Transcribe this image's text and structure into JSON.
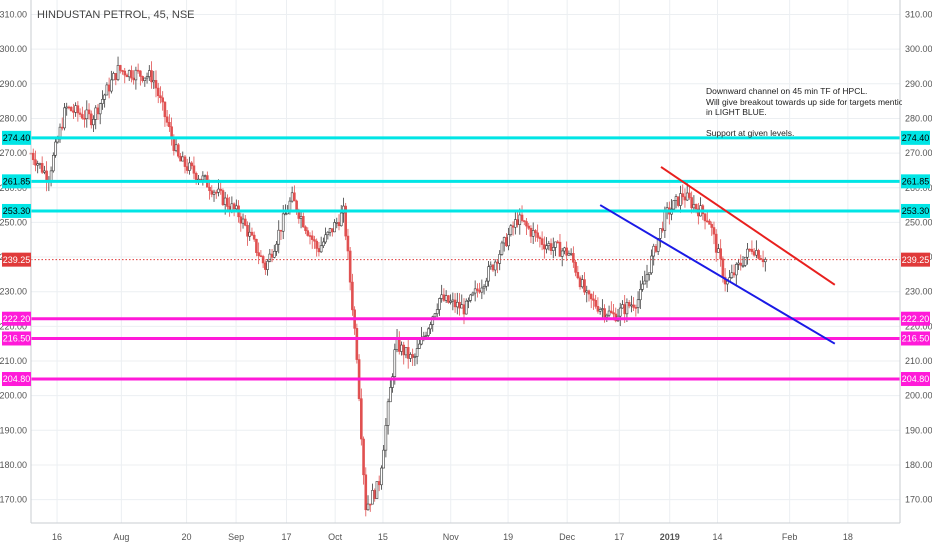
{
  "title": "HINDUSTAN PETROL, 45, NSE",
  "annotation": [
    "Downward channel on 45 min TF of HPCL.",
    "Will give breakout towards up side for targets mentioned",
    "in LIGHT BLUE.",
    "",
    "Support at given levels."
  ],
  "colors": {
    "resistance": "#00e5e5",
    "support": "#ff1ad9",
    "last_price": "#e03a3a",
    "channel_upper": "#e8201e",
    "channel_lower": "#1a1ae6",
    "candle_up": "#3a3a3a",
    "candle_down": "#e05050"
  },
  "chart_data": {
    "type": "candlestick",
    "symbol": "HINDUSTAN PETROL",
    "timeframe": "45",
    "exchange": "NSE",
    "ylim": [
      163,
      313
    ],
    "y_ticks": [
      "310.00",
      "300.00",
      "290.00",
      "280.00",
      "270.00",
      "260.00",
      "250.00",
      "240.00",
      "230.00",
      "220.00",
      "210.00",
      "200.00",
      "190.00",
      "180.00",
      "170.00"
    ],
    "x_ticks": [
      "16",
      "Aug",
      "20",
      "Sep",
      "17",
      "Oct",
      "15",
      "Nov",
      "19",
      "Dec",
      "17",
      "2019",
      "14",
      "Feb",
      "18"
    ],
    "price_path": [
      {
        "t": 0.0,
        "p": 270
      },
      {
        "t": 0.02,
        "p": 263
      },
      {
        "t": 0.04,
        "p": 283
      },
      {
        "t": 0.07,
        "p": 280
      },
      {
        "t": 0.1,
        "p": 294
      },
      {
        "t": 0.14,
        "p": 292
      },
      {
        "t": 0.17,
        "p": 268
      },
      {
        "t": 0.2,
        "p": 262
      },
      {
        "t": 0.24,
        "p": 252
      },
      {
        "t": 0.27,
        "p": 237
      },
      {
        "t": 0.3,
        "p": 257
      },
      {
        "t": 0.33,
        "p": 242
      },
      {
        "t": 0.36,
        "p": 253
      },
      {
        "t": 0.375,
        "p": 212
      },
      {
        "t": 0.385,
        "p": 168
      },
      {
        "t": 0.4,
        "p": 174
      },
      {
        "t": 0.42,
        "p": 215
      },
      {
        "t": 0.44,
        "p": 210
      },
      {
        "t": 0.47,
        "p": 228
      },
      {
        "t": 0.5,
        "p": 225
      },
      {
        "t": 0.53,
        "p": 237
      },
      {
        "t": 0.56,
        "p": 251
      },
      {
        "t": 0.59,
        "p": 244
      },
      {
        "t": 0.62,
        "p": 241
      },
      {
        "t": 0.64,
        "p": 228
      },
      {
        "t": 0.67,
        "p": 223
      },
      {
        "t": 0.7,
        "p": 228
      },
      {
        "t": 0.73,
        "p": 252
      },
      {
        "t": 0.75,
        "p": 258
      },
      {
        "t": 0.78,
        "p": 251
      },
      {
        "t": 0.8,
        "p": 232
      },
      {
        "t": 0.83,
        "p": 243
      },
      {
        "t": 0.845,
        "p": 239.25
      }
    ],
    "horizontal_levels": [
      {
        "label": "274.40",
        "value": 274.4,
        "kind": "resistance"
      },
      {
        "label": "261.85",
        "value": 261.85,
        "kind": "resistance"
      },
      {
        "label": "253.30",
        "value": 253.3,
        "kind": "resistance"
      },
      {
        "label": "222.20",
        "value": 222.2,
        "kind": "support"
      },
      {
        "label": "216.50",
        "value": 216.5,
        "kind": "support"
      },
      {
        "label": "204.80",
        "value": 204.8,
        "kind": "support"
      }
    ],
    "last_price": {
      "label": "239.25",
      "value": 239.25
    },
    "channel": {
      "upper": [
        {
          "t": 0.725,
          "p": 266
        },
        {
          "t": 0.925,
          "p": 232
        }
      ],
      "lower": [
        {
          "t": 0.655,
          "p": 255
        },
        {
          "t": 0.925,
          "p": 215
        }
      ]
    },
    "grid": true
  }
}
